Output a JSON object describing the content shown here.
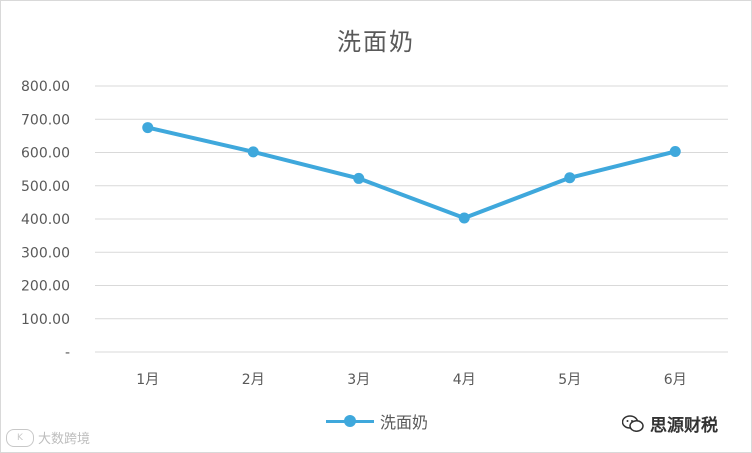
{
  "chart_data": {
    "type": "line",
    "title": "洗面奶",
    "categories": [
      "1月",
      "2月",
      "3月",
      "4月",
      "5月",
      "6月"
    ],
    "series": [
      {
        "name": "洗面奶",
        "values": [
          675,
          602,
          522,
          403,
          524,
          603
        ]
      }
    ],
    "ylim": [
      0,
      800
    ],
    "yticks": [
      "-",
      "100.00",
      "200.00",
      "300.00",
      "400.00",
      "500.00",
      "600.00",
      "700.00",
      "800.00"
    ],
    "ytick_values": [
      0,
      100,
      200,
      300,
      400,
      500,
      600,
      700,
      800
    ],
    "grid": true,
    "legend": "bottom",
    "colors": {
      "series": "#3FA8DC",
      "grid": "#d9d9d9",
      "axis_text": "#595959"
    }
  },
  "watermarks": {
    "left_logo": "K",
    "left_text": "大数跨境",
    "right_text": "思源财税",
    "right_icon": "wechat-icon"
  }
}
